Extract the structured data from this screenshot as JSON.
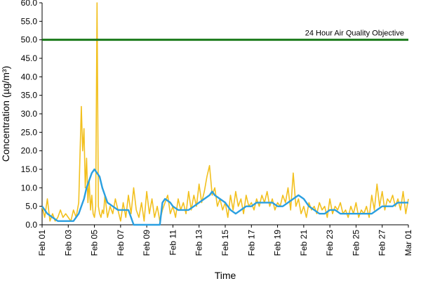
{
  "chart_data": {
    "type": "line",
    "title": "",
    "xlabel": "Time",
    "ylabel": "Concentration (µg/m³)",
    "ylim": [
      0,
      60
    ],
    "yticks": [
      "0.0",
      "5.0",
      "10.0",
      "15.0",
      "20.0",
      "25.0",
      "30.0",
      "35.0",
      "40.0",
      "45.0",
      "50.0",
      "55.0",
      "60.0"
    ],
    "xlim_days": [
      0,
      28
    ],
    "xticks": [
      "Feb 01",
      "Feb 03",
      "Feb 05",
      "Feb 07",
      "Feb 09",
      "Feb 11",
      "Feb 13",
      "Feb 15",
      "Feb 17",
      "Feb 19",
      "Feb 21",
      "Feb 23",
      "Feb 25",
      "Feb 27",
      "Mar 01"
    ],
    "grid": false,
    "legend": "none",
    "objective": {
      "label": "24 Hour Air Quality Objective",
      "value": 50,
      "color": "#1a7a1a"
    },
    "series": [
      {
        "color": "#f2c01e",
        "x": [
          0,
          0.2,
          0.4,
          0.6,
          0.8,
          1,
          1.2,
          1.4,
          1.6,
          1.8,
          2,
          2.2,
          2.4,
          2.6,
          2.8,
          3,
          3.1,
          3.2,
          3.3,
          3.4,
          3.5,
          3.6,
          3.7,
          3.8,
          3.9,
          4,
          4.1,
          4.2,
          4.3,
          4.4,
          4.5,
          4.6,
          4.7,
          4.8,
          5,
          5.2,
          5.4,
          5.6,
          5.8,
          6,
          6.2,
          6.4,
          6.6,
          6.8,
          7,
          7.2,
          7.4,
          7.6,
          7.8,
          8,
          8.2,
          8.4,
          8.6,
          8.8,
          9,
          9.2,
          9.4,
          9.6,
          9.8,
          10,
          10.2,
          10.4,
          10.6,
          10.8,
          11,
          11.2,
          11.4,
          11.6,
          11.8,
          12,
          12.2,
          12.4,
          12.6,
          12.8,
          13,
          13.2,
          13.4,
          13.6,
          13.8,
          14,
          14.2,
          14.4,
          14.6,
          14.8,
          15,
          15.2,
          15.4,
          15.6,
          15.8,
          16,
          16.2,
          16.4,
          16.6,
          16.8,
          17,
          17.2,
          17.4,
          17.6,
          17.8,
          18,
          18.2,
          18.4,
          18.6,
          18.8,
          19,
          19.2,
          19.4,
          19.6,
          19.8,
          20,
          20.2,
          20.4,
          20.6,
          20.8,
          21,
          21.2,
          21.4,
          21.6,
          21.8,
          22,
          22.2,
          22.4,
          22.6,
          22.8,
          23,
          23.2,
          23.4,
          23.6,
          23.8,
          24,
          24.2,
          24.4,
          24.6,
          24.8,
          25,
          25.2,
          25.4,
          25.6,
          25.8,
          26,
          26.2,
          26.4,
          26.6,
          26.8,
          27,
          27.2,
          27.4,
          27.6,
          27.8,
          28
        ],
        "y": [
          5,
          2,
          7,
          1,
          3,
          1,
          2,
          4,
          2,
          3,
          2,
          1,
          4,
          2,
          6,
          32,
          20,
          26,
          10,
          18,
          6,
          12,
          4,
          8,
          3,
          2,
          5,
          60,
          5,
          3,
          2,
          4,
          3,
          8,
          2,
          5,
          3,
          7,
          4,
          1,
          6,
          2,
          8,
          3,
          10,
          4,
          2,
          6,
          1,
          9,
          3,
          7,
          2,
          5,
          1,
          4,
          6,
          8,
          3,
          5,
          2,
          7,
          4,
          6,
          3,
          9,
          4,
          8,
          5,
          11,
          6,
          9,
          13,
          16,
          8,
          10,
          5,
          7,
          4,
          6,
          2,
          8,
          4,
          9,
          5,
          7,
          3,
          8,
          5,
          6,
          4,
          7,
          5,
          8,
          6,
          9,
          5,
          7,
          4,
          6,
          5,
          8,
          6,
          10,
          4,
          14,
          5,
          7,
          3,
          5,
          2,
          6,
          4,
          5,
          3,
          6,
          4,
          5,
          2,
          7,
          3,
          5,
          4,
          6,
          3,
          4,
          2,
          5,
          3,
          6,
          2,
          4,
          3,
          5,
          2,
          8,
          4,
          11,
          5,
          9,
          4,
          7,
          6,
          8,
          5,
          7,
          4,
          9,
          3,
          7
        ]
      },
      {
        "color": "#2a9fe0",
        "x": [
          0,
          0.4,
          0.8,
          1.2,
          1.6,
          2,
          2.4,
          2.8,
          3,
          3.2,
          3.4,
          3.6,
          3.8,
          4,
          4.2,
          4.4,
          4.6,
          4.8,
          5,
          5.4,
          5.8,
          6.2,
          6.6,
          7,
          7.4,
          7.8,
          8.2,
          8.6,
          9,
          9.2,
          9.4,
          9.8,
          10,
          10.4,
          10.8,
          11.2,
          11.6,
          12,
          12.4,
          12.8,
          13,
          13.2,
          13.6,
          14,
          14.4,
          14.8,
          15.2,
          15.6,
          16,
          16.4,
          16.8,
          17.2,
          17.6,
          18,
          18.4,
          18.8,
          19.2,
          19.6,
          20,
          20.4,
          20.8,
          21.2,
          21.6,
          22,
          22.4,
          22.8,
          23.2,
          23.6,
          24,
          24.4,
          24.8,
          25.2,
          25.6,
          26,
          26.4,
          26.8,
          27.2,
          27.6,
          28
        ],
        "y": [
          5,
          3,
          2,
          1,
          1,
          1,
          1,
          3,
          5,
          7,
          10,
          12,
          14,
          15,
          14,
          13,
          10,
          8,
          6,
          5,
          4,
          4,
          4,
          0,
          0,
          0,
          0,
          0,
          0,
          6,
          7,
          6,
          5,
          4,
          4,
          4,
          5,
          6,
          7,
          8,
          9,
          8,
          7,
          6,
          4,
          3,
          4,
          5,
          5,
          6,
          6,
          6,
          6,
          5,
          5,
          6,
          7,
          8,
          7,
          5,
          4,
          3,
          3,
          4,
          4,
          3,
          3,
          3,
          3,
          3,
          3,
          3,
          4,
          5,
          5,
          5,
          6,
          6,
          6
        ]
      }
    ]
  }
}
